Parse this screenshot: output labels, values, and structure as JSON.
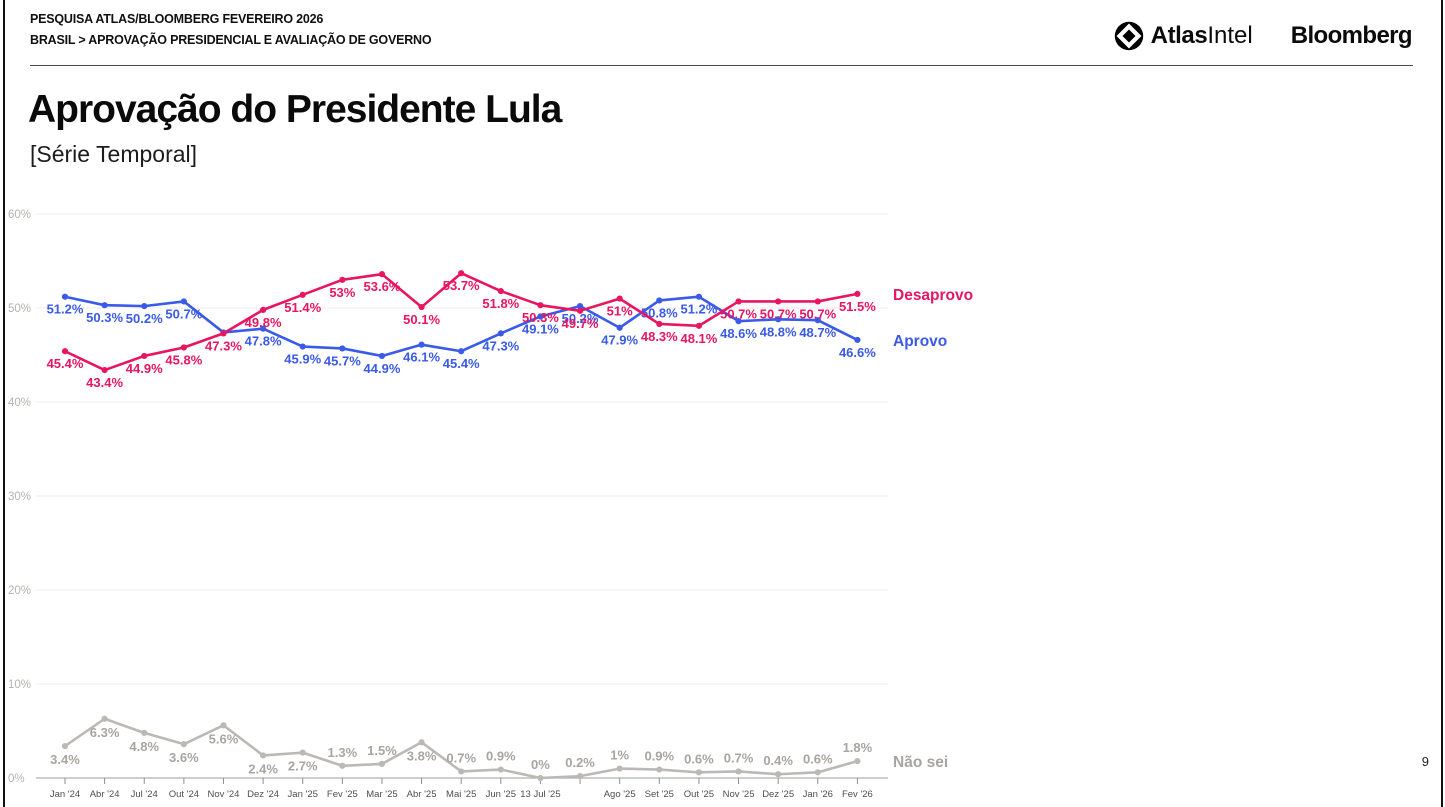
{
  "page": {
    "number": "9"
  },
  "header": {
    "kicker_line1": "PESQUISA ATLAS/BLOOMBERG FEVEREIRO 2026",
    "kicker_line2": "BRASIL > APROVAÇÃO PRESIDENCIAL E AVALIAÇÃO DE GOVERNO",
    "logos": {
      "atlas_bold": "Atlas",
      "atlas_regular": "Intel",
      "bloomberg": "Bloomberg"
    }
  },
  "title": "Aprovação do Presidente Lula",
  "subtitle": "[Série Temporal]",
  "chart_data": {
    "type": "line",
    "title": "Aprovação do Presidente Lula [Série Temporal]",
    "categories": [
      "Jan '24",
      "Abr '24",
      "Jul '24",
      "Out '24",
      "Nov '24",
      "Dez '24",
      "Jan '25",
      "Fev '25",
      "Mar '25",
      "Abr '25",
      "Mai '25",
      "Jun '25",
      "13 Jul '25",
      "",
      "Ago '25",
      "Set '25",
      "Out '25",
      "Nov '25",
      "Dez '25",
      "Jan '26",
      "Fev '26"
    ],
    "ylim": [
      0,
      60
    ],
    "ytick_labels": [
      "0%",
      "10%",
      "20%",
      "30%",
      "40%",
      "50%",
      "60%"
    ],
    "grid": true,
    "legend_position": "right-of-line-ends",
    "series": [
      {
        "name": "Desaprovo",
        "color": "#e81561",
        "values": [
          45.4,
          43.4,
          44.9,
          45.8,
          47.3,
          49.8,
          51.4,
          53,
          53.6,
          50.1,
          53.7,
          51.8,
          50.3,
          49.7,
          51,
          48.3,
          48.1,
          50.7,
          50.7,
          50.7,
          51.5
        ],
        "labels": [
          "45.4%",
          "43.4%",
          "44.9%",
          "45.8%",
          "47.3%",
          "49.8%",
          "51.4%",
          "53%",
          "53.6%",
          "50.1%",
          "53.7%",
          "51.8%",
          "50.3%",
          "49.7%",
          "51%",
          "48.3%",
          "48.1%",
          "50.7%",
          "50.7%",
          "50.7%",
          "51.5%"
        ]
      },
      {
        "name": "Aprovo",
        "color": "#3a5ae8",
        "values": [
          51.2,
          50.3,
          50.2,
          50.7,
          47.4,
          47.8,
          45.9,
          45.7,
          44.9,
          46.1,
          45.4,
          47.3,
          49.1,
          50.2,
          47.9,
          50.8,
          51.2,
          48.6,
          48.8,
          48.7,
          46.6
        ],
        "labels": [
          "51.2%",
          "50.3%",
          "50.2%",
          "50.7%",
          "",
          "47.8%",
          "45.9%",
          "45.7%",
          "44.9%",
          "46.1%",
          "45.4%",
          "47.3%",
          "49.1%",
          "50.2%",
          "47.9%",
          "50.8%",
          "51.2%",
          "48.6%",
          "48.8%",
          "48.7%",
          "46.6%"
        ]
      },
      {
        "name": "Não sei",
        "color": "#bcb9b5",
        "label_color": "#a8a5a1",
        "values": [
          3.4,
          6.3,
          4.8,
          3.6,
          5.6,
          2.4,
          2.7,
          1.3,
          1.5,
          3.8,
          0.7,
          0.9,
          0,
          0.2,
          1,
          0.9,
          0.6,
          0.7,
          0.4,
          0.6,
          1.8
        ],
        "labels": [
          "3.4%",
          "6.3%",
          "4.8%",
          "3.6%",
          "5.6%",
          "2.4%",
          "2.7%",
          "1.3%",
          "1.5%",
          "3.8%",
          "0.7%",
          "0.9%",
          "0%",
          "0.2%",
          "1%",
          "0.9%",
          "0.6%",
          "0.7%",
          "0.4%",
          "0.6%",
          "1.8%"
        ]
      }
    ],
    "colors": {
      "grid": "#ececec",
      "axis": "#b0b0b0",
      "tick": "#8f8f8f",
      "ytick_text": "#b5b3b0",
      "xtick_text": "#4f4f4f"
    }
  }
}
